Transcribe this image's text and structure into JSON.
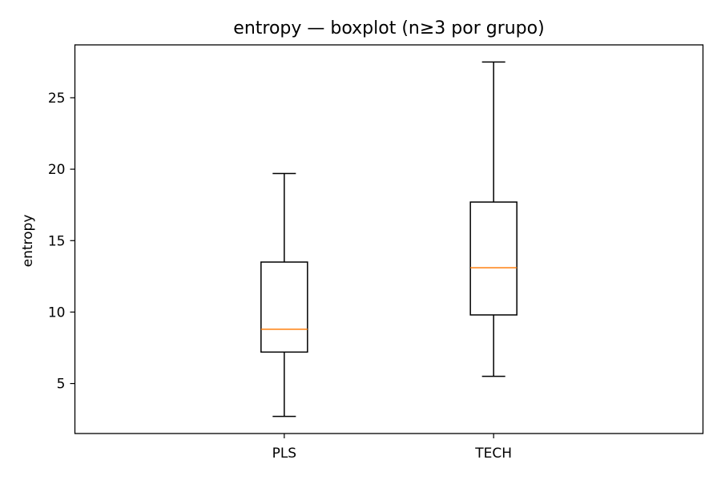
{
  "chart_data": {
    "type": "boxplot",
    "title": "entropy — boxplot (n≥3 por grupo)",
    "xlabel": "",
    "ylabel": "entropy",
    "categories": [
      "PLS",
      "TECH"
    ],
    "boxes": [
      {
        "category": "PLS",
        "whisker_low": 2.7,
        "q1": 7.2,
        "median": 8.8,
        "q3": 13.5,
        "whisker_high": 19.7
      },
      {
        "category": "TECH",
        "whisker_low": 5.5,
        "q1": 9.8,
        "median": 13.1,
        "q3": 17.7,
        "whisker_high": 27.5
      }
    ],
    "ylim": [
      1.5,
      28.7
    ],
    "yticks": [
      5,
      10,
      15,
      20,
      25
    ],
    "grid": false,
    "colors": {
      "box": "#000000",
      "median": "#ff7f0e"
    }
  }
}
